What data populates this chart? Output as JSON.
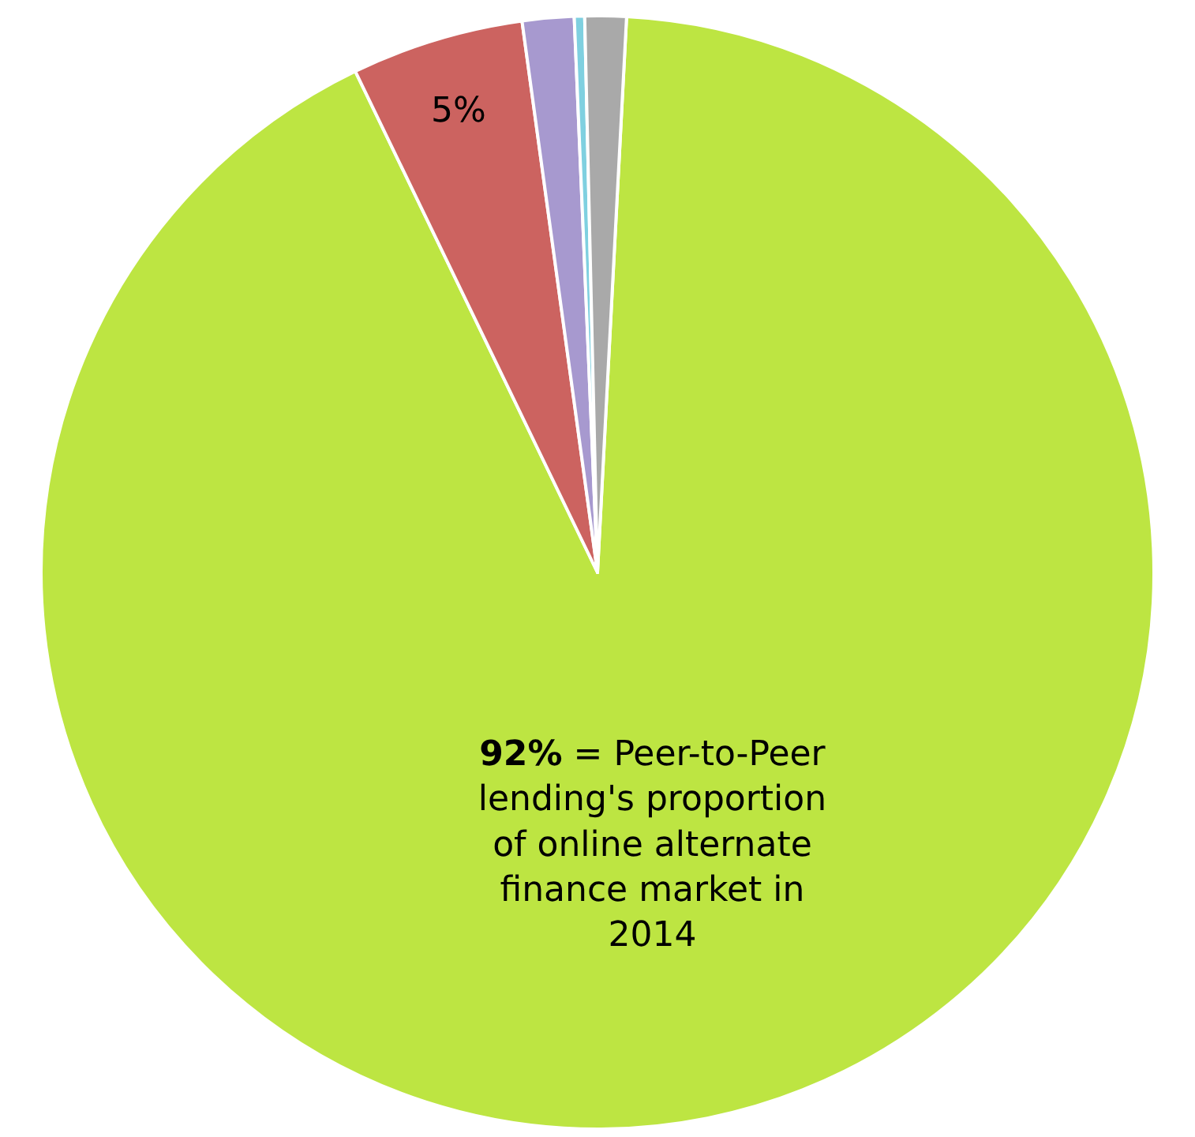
{
  "chart_data": {
    "type": "pie",
    "categories": [
      null,
      null,
      null,
      null,
      null
    ],
    "values": [
      92,
      5,
      1.5,
      0.3,
      1.2
    ],
    "colors": [
      "#bde542",
      "#cc6360",
      "#a799cf",
      "#7fd0e0",
      "#a9a9a9"
    ],
    "value_labels": [
      "92% = Peer-to-Peer lending's proportion of online alternate finance market in 2014",
      "5%",
      null,
      null,
      null
    ]
  }
}
